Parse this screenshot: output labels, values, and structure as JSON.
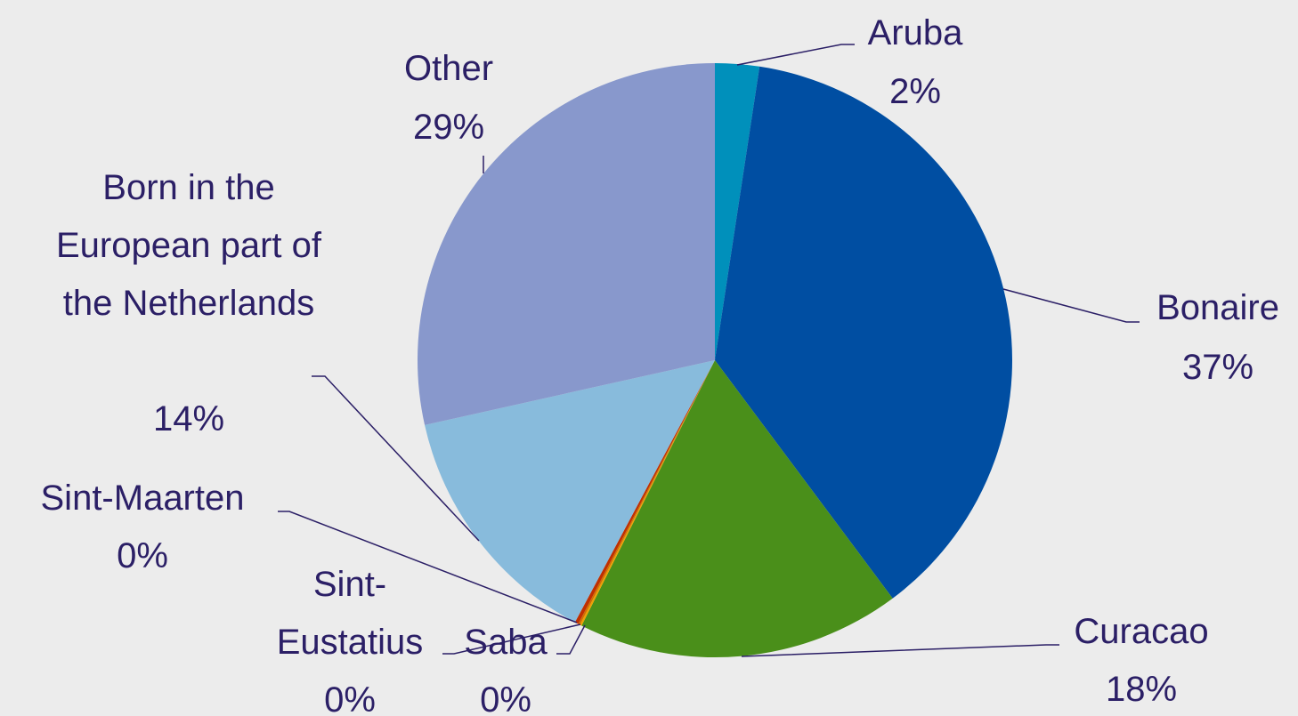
{
  "chart_data": {
    "type": "pie",
    "categories": [
      "Aruba",
      "Bonaire",
      "Curacao",
      "Saba",
      "Sint-Eustatius",
      "Sint-Maarten",
      "Born in the European part of the Netherlands",
      "Other"
    ],
    "values": [
      2.4,
      37.4,
      17.6,
      0.1,
      0.1,
      0.2,
      13.7,
      28.5
    ],
    "value_labels": [
      "2%",
      "37%",
      "18%",
      "0%",
      "0%",
      "0%",
      "14%",
      "29%"
    ],
    "colors": [
      "#0090bb",
      "#004ea2",
      "#4a8f1a",
      "#f0a000",
      "#d07000",
      "#c03000",
      "#88bbdc",
      "#8898cc"
    ]
  }
}
